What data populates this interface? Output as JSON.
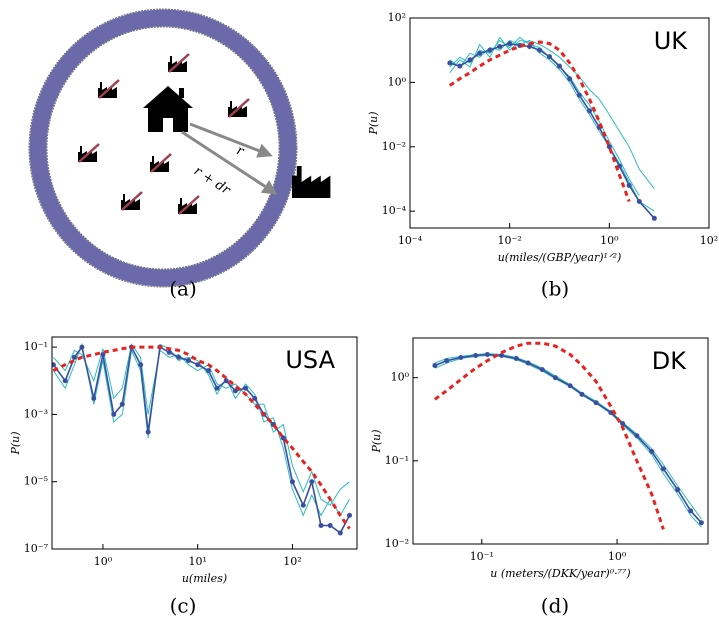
{
  "diagram": {
    "r_label": "r",
    "dr_label": "r + dr",
    "caption": "(a)"
  },
  "chart_data": [
    {
      "type": "line",
      "title": "UK",
      "caption": "(b)",
      "xlabel": "u(miles/(GBP/year)¹ᐟ²)",
      "ylabel": "P(u)",
      "xscale": "log",
      "yscale": "log",
      "xlim": [
        0.0001,
        100
      ],
      "ylim": [
        3e-05,
        100
      ],
      "xticks": [
        {
          "value": 0.0001,
          "label": "10⁻⁴"
        },
        {
          "value": 0.01,
          "label": "10⁻²"
        },
        {
          "value": 1,
          "label": "10⁰"
        },
        {
          "value": 100,
          "label": "10²"
        }
      ],
      "yticks": [
        {
          "value": 0.0001,
          "label": "10⁻⁴"
        },
        {
          "value": 0.01,
          "label": "10⁻²"
        },
        {
          "value": 1,
          "label": "10⁰"
        },
        {
          "value": 100,
          "label": "10²"
        }
      ],
      "x": [
        0.00063,
        0.001,
        0.0016,
        0.0025,
        0.004,
        0.0063,
        0.01,
        0.016,
        0.025,
        0.04,
        0.063,
        0.1,
        0.16,
        0.25,
        0.4,
        0.63,
        1,
        1.6,
        2.5,
        4,
        8
      ],
      "series": [
        {
          "color": "#2bbcc0",
          "linestyle": "solid",
          "markers": false,
          "values": [
            3,
            6,
            4,
            10,
            8,
            20,
            12,
            25,
            15,
            12,
            6,
            3,
            1.5,
            0.5,
            0.2,
            0.06,
            0.015,
            0.004,
            0.001,
            0.0003,
            null
          ]
        },
        {
          "color": "#2bbcc0",
          "linestyle": "solid",
          "markers": false,
          "values": [
            2,
            5,
            3,
            15,
            6,
            25,
            10,
            20,
            18,
            8,
            5,
            2.5,
            1,
            0.3,
            0.1,
            0.03,
            0.01,
            0.003,
            0.0008,
            0.0002,
            0.0001
          ]
        },
        {
          "color": "#2bbcc0",
          "linestyle": "solid",
          "markers": false,
          "values": [
            5,
            3,
            8,
            6,
            12,
            10,
            20,
            15,
            20,
            15,
            10,
            6,
            3,
            1.5,
            0.6,
            0.3,
            0.1,
            0.03,
            0.01,
            0.002,
            0.0005
          ]
        },
        {
          "color": "#3a4fa0",
          "linestyle": "solid",
          "markers": true,
          "values": [
            4,
            3.2,
            5,
            8,
            10,
            13,
            16,
            14,
            13,
            10,
            6.3,
            3.2,
            1.3,
            0.4,
            0.13,
            0.04,
            0.01,
            0.0025,
            0.00063,
            0.0002,
            6e-05
          ]
        },
        {
          "color": "#e8221e",
          "linestyle": "dashed",
          "markers": false,
          "values": [
            0.8,
            1.3,
            2,
            3.2,
            5,
            7,
            10,
            13,
            16,
            18,
            16,
            10,
            4,
            1.3,
            0.3,
            0.06,
            0.01,
            0.0013,
            0.0002,
            null,
            null
          ]
        }
      ]
    },
    {
      "type": "line",
      "title": "USA",
      "caption": "(c)",
      "xlabel": "u(miles)",
      "ylabel": "P(u)",
      "xscale": "log",
      "yscale": "log",
      "xlim": [
        0.29,
        480
      ],
      "ylim": [
        1e-07,
        0.2
      ],
      "xticks": [
        {
          "value": 1,
          "label": "10⁰"
        },
        {
          "value": 10,
          "label": "10¹"
        },
        {
          "value": 100,
          "label": "10²"
        }
      ],
      "yticks": [
        {
          "value": 0.1,
          "label": "10⁻¹"
        },
        {
          "value": 0.001,
          "label": "10⁻³"
        },
        {
          "value": 1e-05,
          "label": "10⁻⁵"
        },
        {
          "value": 1e-07,
          "label": "10⁻⁷"
        }
      ],
      "x": [
        0.3,
        0.4,
        0.5,
        0.6,
        0.8,
        1,
        1.3,
        1.6,
        2,
        2.5,
        3,
        4,
        5,
        6.3,
        8,
        10,
        13,
        16,
        20,
        25,
        32,
        40,
        50,
        63,
        80,
        100,
        130,
        160,
        200,
        250,
        320,
        400
      ],
      "series": [
        {
          "color": "#2bbcc0",
          "linestyle": "solid",
          "markers": false,
          "values": [
            0.05,
            0.02,
            0.08,
            0.06,
            0.01,
            0.09,
            0.003,
            0.006,
            0.12,
            0.05,
            0.001,
            0.08,
            0.05,
            0.06,
            0.03,
            0.02,
            0.03,
            0.008,
            0.006,
            0.008,
            0.004,
            0.002,
            0.002,
            0.0003,
            0.0005,
            3e-05,
            5e-06,
            2e-05,
            3e-06,
            2e-06,
            6e-06,
            1e-05
          ]
        },
        {
          "color": "#2bbcc0",
          "linestyle": "solid",
          "markers": false,
          "values": [
            0.02,
            0.006,
            0.03,
            0.12,
            0.002,
            0.04,
            0.0006,
            0.001,
            0.08,
            0.02,
            0.0002,
            0.12,
            0.09,
            0.04,
            0.05,
            0.04,
            0.015,
            0.004,
            0.012,
            0.003,
            0.008,
            0.004,
            0.0006,
            0.0008,
            0.0001,
            6e-06,
            1e-06,
            4e-06,
            1e-06,
            3e-06,
            1e-06,
            3e-06
          ]
        },
        {
          "color": "#3a4fa0",
          "linestyle": "solid",
          "markers": true,
          "values": [
            0.03,
            0.01,
            0.05,
            0.1,
            0.003,
            0.06,
            0.001,
            0.002,
            0.1,
            0.03,
            0.0003,
            0.1,
            0.07,
            0.05,
            0.04,
            0.03,
            0.02,
            0.006,
            0.01,
            0.005,
            0.006,
            0.003,
            0.001,
            0.0005,
            0.0002,
            1e-05,
            2e-06,
            1e-05,
            5e-07,
            5e-07,
            3e-07,
            1e-06
          ]
        },
        {
          "color": "#e8221e",
          "linestyle": "dashed",
          "markers": false,
          "values": [
            0.02,
            0.03,
            0.04,
            0.05,
            0.06,
            0.07,
            0.08,
            0.09,
            0.1,
            0.1,
            0.1,
            0.1,
            0.09,
            0.08,
            0.06,
            0.04,
            0.03,
            0.02,
            0.012,
            0.007,
            0.004,
            0.002,
            0.001,
            0.0005,
            0.0002,
            0.0001,
            4e-05,
            2e-05,
            8e-06,
            3e-06,
            1e-06,
            4e-07
          ]
        }
      ]
    },
    {
      "type": "line",
      "title": "DK",
      "caption": "(d)",
      "xlabel": "u (meters/(DKK/year)⁰·⁷⁷)",
      "ylabel": "P(u)",
      "xscale": "log",
      "yscale": "log",
      "xlim": [
        0.031,
        4.7
      ],
      "ylim": [
        0.01,
        3
      ],
      "xticks": [
        {
          "value": 0.1,
          "label": "10⁻¹"
        },
        {
          "value": 1,
          "label": "10⁰"
        }
      ],
      "yticks": [
        {
          "value": 0.01,
          "label": "10⁻²"
        },
        {
          "value": 0.1,
          "label": "10⁻¹"
        },
        {
          "value": 1,
          "label": "10⁰"
        }
      ],
      "x": [
        0.045,
        0.055,
        0.07,
        0.09,
        0.11,
        0.14,
        0.18,
        0.22,
        0.28,
        0.35,
        0.45,
        0.55,
        0.7,
        0.9,
        1.1,
        1.4,
        1.8,
        2.2,
        2.8,
        3.5,
        4.2
      ],
      "series": [
        {
          "color": "#2bbcc0",
          "linestyle": "solid",
          "markers": false,
          "values": [
            1.3,
            1.5,
            1.7,
            1.8,
            1.85,
            1.8,
            1.65,
            1.45,
            1.2,
            0.97,
            0.78,
            0.62,
            0.49,
            0.37,
            0.27,
            0.19,
            0.12,
            0.07,
            0.04,
            0.022,
            0.016
          ]
        },
        {
          "color": "#2bbcc0",
          "linestyle": "solid",
          "markers": false,
          "values": [
            1.5,
            1.7,
            1.8,
            1.9,
            1.95,
            1.9,
            1.75,
            1.55,
            1.3,
            1.05,
            0.82,
            0.65,
            0.52,
            0.39,
            0.29,
            0.21,
            0.14,
            0.09,
            0.05,
            0.03,
            0.02
          ]
        },
        {
          "color": "#3a4fa0",
          "linestyle": "solid",
          "markers": true,
          "values": [
            1.4,
            1.6,
            1.75,
            1.85,
            1.9,
            1.85,
            1.7,
            1.5,
            1.25,
            1.0,
            0.8,
            0.63,
            0.5,
            0.38,
            0.28,
            0.2,
            0.13,
            0.08,
            0.045,
            0.025,
            0.018
          ]
        },
        {
          "color": "#e8221e",
          "linestyle": "dashed",
          "markers": false,
          "values": [
            0.55,
            0.7,
            0.95,
            1.3,
            1.6,
            2,
            2.4,
            2.6,
            2.6,
            2.4,
            1.9,
            1.4,
            0.9,
            0.45,
            0.25,
            0.1,
            0.04,
            0.015,
            null,
            null,
            null
          ]
        }
      ]
    }
  ]
}
